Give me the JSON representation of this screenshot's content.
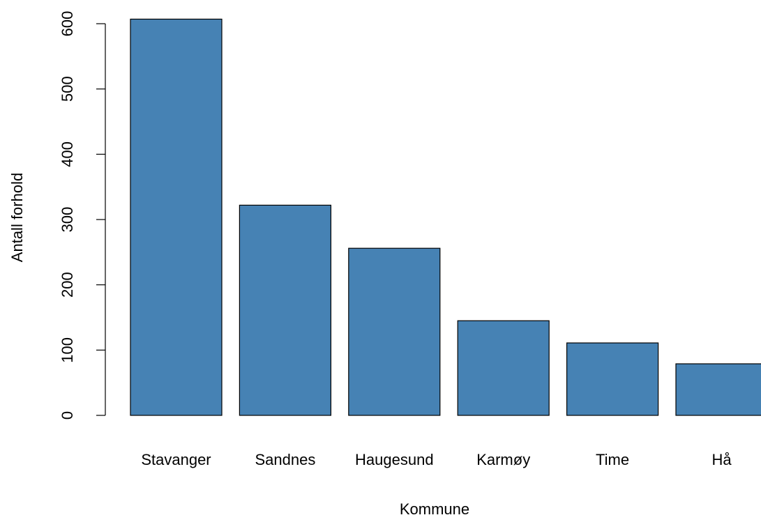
{
  "chart_data": {
    "type": "bar",
    "categories": [
      "Stavanger",
      "Sandnes",
      "Haugesund",
      "Karmøy",
      "Time",
      "Hå"
    ],
    "values": [
      607,
      322,
      256,
      145,
      111,
      79
    ],
    "title": "",
    "xlabel": "Kommune",
    "ylabel": "Antall forhold",
    "ylim": [
      0,
      600
    ],
    "yticks": [
      0,
      100,
      200,
      300,
      400,
      500,
      600
    ],
    "grid": false,
    "bar_color": "#4682B4",
    "bar_border_color": "#000000"
  }
}
